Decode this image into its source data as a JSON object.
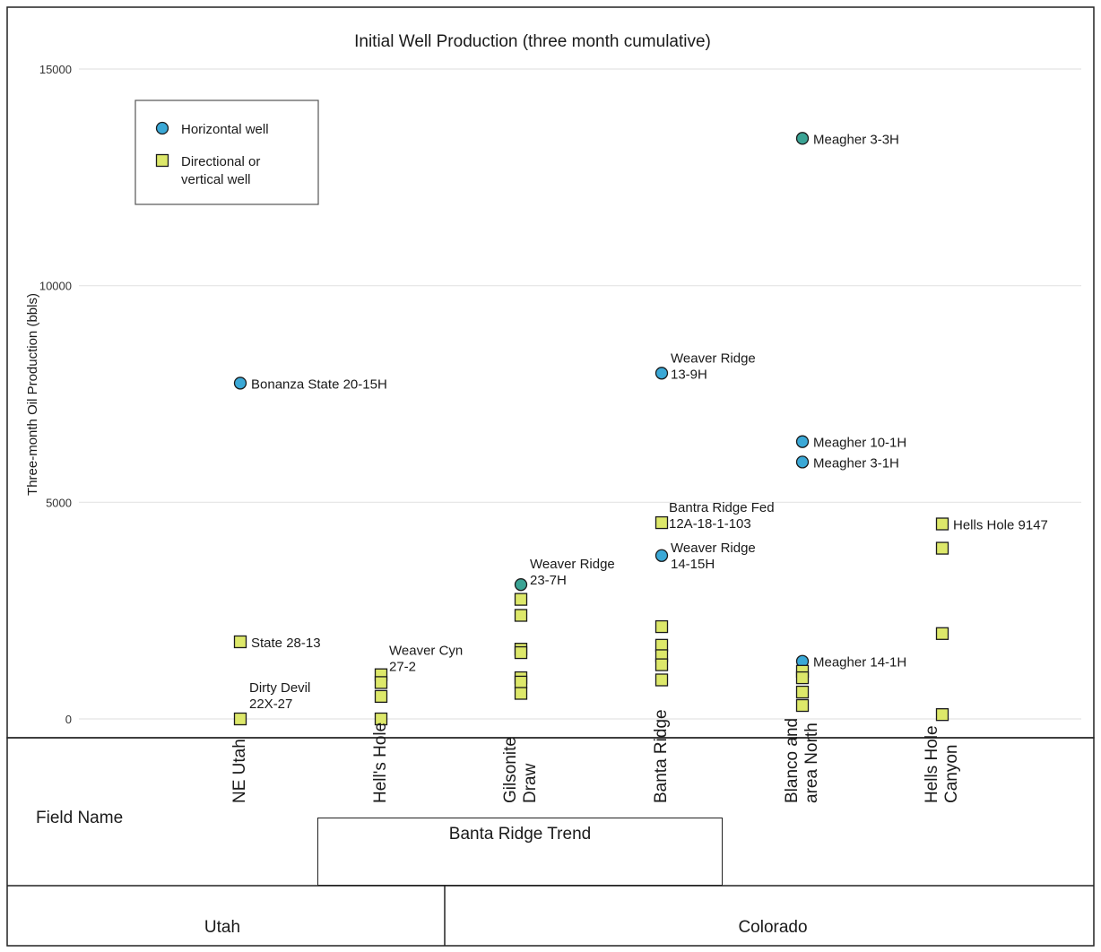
{
  "chart_data": {
    "type": "scatter",
    "title": "Initial Well Production (three month cumulative)",
    "ylabel": "Three-month Oil Production (bbls)",
    "ylim": [
      0,
      15000
    ],
    "yticks": [
      0,
      5000,
      10000,
      15000
    ],
    "grid": true,
    "legend_position": "top-left",
    "categories": [
      "NE Utah",
      "Hell's Hole",
      "Gilsonite Draw",
      "Banta Ridge",
      "Blanco and area North",
      "Hells Hole Canyon"
    ],
    "series": [
      {
        "name": "Horizontal well",
        "marker": "circle",
        "points": [
          {
            "category": "NE Utah",
            "y": 7750,
            "label": "Bonanza State 20-15H",
            "color": "#3aa8d6"
          },
          {
            "category": "Gilsonite Draw",
            "y": 3100,
            "label": "Weaver Ridge 23-7H",
            "color": "#3aa394"
          },
          {
            "category": "Banta Ridge",
            "y": 7980,
            "label": "Weaver Ridge 13-9H",
            "color": "#3aa8d6"
          },
          {
            "category": "Banta Ridge",
            "y": 3770,
            "label": "Weaver Ridge 14-15H",
            "color": "#3aa8d6"
          },
          {
            "category": "Blanco and area North",
            "y": 13400,
            "label": "Meagher 3-3H",
            "color": "#3aa394"
          },
          {
            "category": "Blanco and area North",
            "y": 6400,
            "label": "Meagher 10-1H",
            "color": "#3aa8d6"
          },
          {
            "category": "Blanco and area North",
            "y": 5930,
            "label": "Meagher 3-1H",
            "color": "#3aa8d6"
          },
          {
            "category": "Blanco and area North",
            "y": 1330,
            "label": "Meagher 14-1H",
            "color": "#3aa8d6"
          }
        ]
      },
      {
        "name": "Directional or vertical well",
        "marker": "square",
        "points": [
          {
            "category": "NE Utah",
            "y": 1780,
            "label": "State 28-13"
          },
          {
            "category": "NE Utah",
            "y": 0,
            "label": "Dirty Devil 22X-27"
          },
          {
            "category": "Hell's Hole",
            "y": 1020,
            "label": "Weaver Cyn 27-2"
          },
          {
            "category": "Hell's Hole",
            "y": 840,
            "label": ""
          },
          {
            "category": "Hell's Hole",
            "y": 520,
            "label": ""
          },
          {
            "category": "Hell's Hole",
            "y": 0,
            "label": ""
          },
          {
            "category": "Gilsonite Draw",
            "y": 2760,
            "label": ""
          },
          {
            "category": "Gilsonite Draw",
            "y": 2390,
            "label": ""
          },
          {
            "category": "Gilsonite Draw",
            "y": 1610,
            "label": ""
          },
          {
            "category": "Gilsonite Draw",
            "y": 1530,
            "label": ""
          },
          {
            "category": "Gilsonite Draw",
            "y": 950,
            "label": ""
          },
          {
            "category": "Gilsonite Draw",
            "y": 850,
            "label": ""
          },
          {
            "category": "Gilsonite Draw",
            "y": 590,
            "label": ""
          },
          {
            "category": "Banta Ridge",
            "y": 4530,
            "label": "Bantra Ridge Fed 12A-18-1-103"
          },
          {
            "category": "Banta Ridge",
            "y": 2130,
            "label": ""
          },
          {
            "category": "Banta Ridge",
            "y": 1700,
            "label": ""
          },
          {
            "category": "Banta Ridge",
            "y": 1460,
            "label": ""
          },
          {
            "category": "Banta Ridge",
            "y": 1250,
            "label": ""
          },
          {
            "category": "Banta Ridge",
            "y": 900,
            "label": ""
          },
          {
            "category": "Blanco and area North",
            "y": 1100,
            "label": ""
          },
          {
            "category": "Blanco and area North",
            "y": 950,
            "label": ""
          },
          {
            "category": "Blanco and area North",
            "y": 620,
            "label": ""
          },
          {
            "category": "Blanco and area North",
            "y": 310,
            "label": ""
          },
          {
            "category": "Hells Hole Canyon",
            "y": 4500,
            "label": "Hells Hole 9147"
          },
          {
            "category": "Hells Hole Canyon",
            "y": 3940,
            "label": ""
          },
          {
            "category": "Hells Hole Canyon",
            "y": 1970,
            "label": ""
          },
          {
            "category": "Hells Hole Canyon",
            "y": 100,
            "label": ""
          }
        ]
      }
    ],
    "legend": [
      {
        "marker": "circle",
        "color": "#3aa8d6",
        "label_lines": [
          "Horizontal well"
        ]
      },
      {
        "marker": "square",
        "color": "#dde86a",
        "label_lines": [
          "Directional or",
          "vertical well"
        ]
      }
    ],
    "colors": {
      "horizontal": "#3aa8d6",
      "horizontal_alt": "#3aa394",
      "directional": "#dde86a",
      "grid": "#e4e4e4",
      "frame": "#222222"
    }
  },
  "field_row": {
    "label": "Field Name",
    "field_name_lines": [
      [
        "NE Utah"
      ],
      [
        "Hell's Hole"
      ],
      [
        "Gilsonite",
        "Draw"
      ],
      [
        "Banta Ridge"
      ],
      [
        "Blanco and",
        "area North"
      ],
      [
        "Hells Hole",
        "Canyon"
      ]
    ]
  },
  "trend_label": "Banta Ridge Trend",
  "states": {
    "left": "Utah",
    "right": "Colorado"
  }
}
